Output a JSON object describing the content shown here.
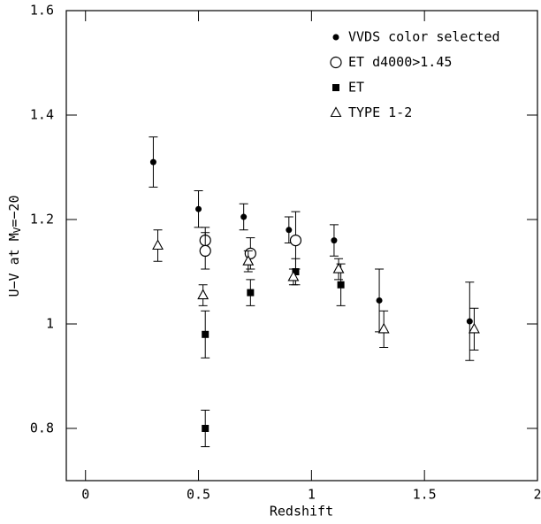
{
  "chart_data": {
    "type": "scatter",
    "xlabel": "Redshift",
    "ylabel": {
      "main": "U−V at M",
      "sub": "V",
      "tail": "=−20"
    },
    "xlim": [
      -0.085,
      2
    ],
    "ylim": [
      0.7,
      1.6
    ],
    "xticks": [
      0,
      0.5,
      1,
      1.5,
      2
    ],
    "yticks": [
      0.8,
      1,
      1.2,
      1.4,
      1.6
    ],
    "legend": "upper right",
    "series": [
      {
        "name": "VVDS color selected",
        "marker": "circle-filled",
        "color": "#000000",
        "x": [
          0.3,
          0.5,
          0.7,
          0.9,
          1.1,
          1.3,
          1.7
        ],
        "values": [
          1.31,
          1.22,
          1.205,
          1.18,
          1.16,
          1.045,
          1.005
        ],
        "errors": [
          0.048,
          0.035,
          0.025,
          0.025,
          0.03,
          0.06,
          0.075
        ]
      },
      {
        "name": "ET d4000>1.45",
        "marker": "circle-open",
        "color": "#000000",
        "x": [
          0.53,
          0.53,
          0.73,
          0.93
        ],
        "values": [
          1.16,
          1.14,
          1.135,
          1.16
        ],
        "errors": [
          0.025,
          0.035,
          0.03,
          0.055
        ]
      },
      {
        "name": "ET",
        "marker": "square-filled",
        "color": "#000000",
        "x": [
          0.53,
          0.53,
          0.73,
          0.93,
          1.13
        ],
        "values": [
          0.98,
          0.8,
          1.06,
          1.1,
          1.075
        ],
        "errors": [
          0.045,
          0.035,
          0.025,
          0.025,
          0.04
        ]
      },
      {
        "name": "TYPE 1-2",
        "marker": "triangle-open",
        "color": "#000000",
        "x": [
          0.32,
          0.52,
          0.72,
          0.92,
          1.12,
          1.32,
          1.72
        ],
        "values": [
          1.15,
          1.055,
          1.12,
          1.09,
          1.105,
          0.99,
          0.99
        ],
        "errors": [
          0.03,
          0.02,
          0.02,
          0.015,
          0.02,
          0.035,
          0.04
        ]
      }
    ]
  }
}
